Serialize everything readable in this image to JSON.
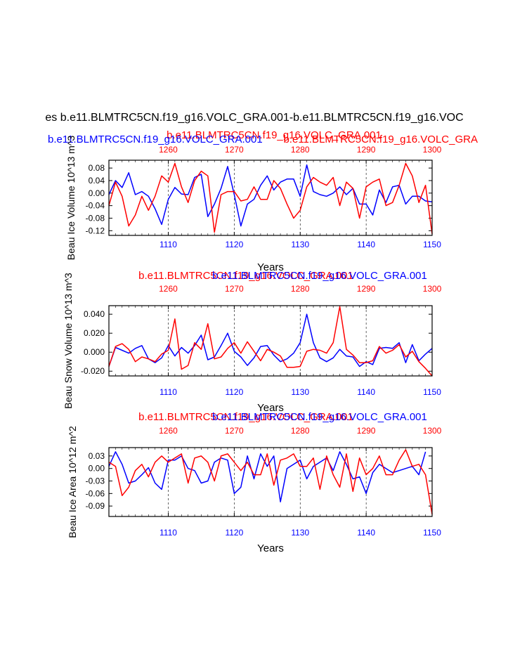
{
  "page_title": "es b.e11.BLMTRC5CN.f19_g16.VOLC_GRA.001-b.e11.BLMTRC5CN.f19_g16.VOC",
  "colors": {
    "case_a": "#0000ff",
    "case_b": "#ff0000",
    "axis": "#000000"
  },
  "chart_data": [
    {
      "type": "line",
      "header_left": "b.e11.BLMTRC5CN.f19_g16.VOLC_GRA.001",
      "header_right": "b.e11.BLMTRC5CN.f19_g16.VOLC_GRA",
      "header_red": "b.e11.BLMTRC5CN.f19_g16.VOLC_GRA.001",
      "header_blue": "b.e11.BLMTRC5CN.f19_g16.VOLC_GRA.001",
      "ylabel": "Beau Ice Volume 10^13 m^3",
      "xlabel": "Years",
      "xlim": [
        1101,
        1150
      ],
      "ylim": [
        -0.135,
        0.105
      ],
      "y_ticks": [
        0.08,
        0.04,
        0.0,
        -0.04,
        -0.08,
        -0.12
      ],
      "y_tick_labels": [
        "0.08",
        "0.04",
        "0.00",
        "-0.04",
        "-0.08",
        "-0.12"
      ],
      "x_ticks_bottom": [
        "1110",
        "1120",
        "1130",
        "1140",
        "1150"
      ],
      "x_ticks_top": [
        "1260",
        "1270",
        "1280",
        "1290",
        "1300"
      ],
      "series": [
        {
          "name": "b.e11.BLMTRC5CN.f19_g16.VOLC_GRA.001",
          "color": "blue",
          "values": [
            -0.005,
            0.04,
            0.018,
            0.065,
            -0.005,
            0.005,
            -0.01,
            -0.05,
            -0.1,
            -0.02,
            0.018,
            -0.003,
            -0.005,
            0.05,
            0.06,
            -0.075,
            -0.035,
            0.015,
            0.085,
            -0.005,
            -0.105,
            -0.035,
            -0.02,
            0.025,
            0.055,
            0.01,
            0.035,
            0.045,
            0.045,
            -0.01,
            0.09,
            0.005,
            -0.005,
            -0.01,
            0.0,
            0.02,
            -0.005,
            0.015,
            -0.035,
            -0.035,
            -0.07,
            0.01,
            -0.03,
            0.02,
            0.025,
            -0.035,
            -0.01,
            -0.01,
            -0.025,
            -0.028
          ]
        },
        {
          "name": "b.e11.BLMTRC5CN.f19_g16.VOLC_GRA.001",
          "color": "red",
          "values": [
            -0.04,
            0.035,
            -0.01,
            -0.105,
            -0.07,
            -0.01,
            -0.055,
            -0.01,
            0.055,
            0.035,
            0.095,
            0.02,
            -0.03,
            0.04,
            0.07,
            0.055,
            -0.125,
            -0.005,
            0.005,
            0.005,
            -0.025,
            -0.02,
            0.02,
            -0.02,
            -0.02,
            0.04,
            0.015,
            -0.035,
            -0.08,
            -0.055,
            0.02,
            0.05,
            0.035,
            0.025,
            0.05,
            -0.04,
            0.035,
            0.015,
            -0.08,
            0.02,
            0.035,
            0.045,
            -0.04,
            -0.03,
            0.025,
            0.095,
            0.055,
            -0.03,
            0.025,
            -0.13
          ]
        }
      ]
    },
    {
      "type": "line",
      "header_red": "b.e11.BLMTRC5CN.f19_g16.VOLC_GRA.001",
      "header_blue": "b.e11.BLMTRC5CN.f19_g16.VOLC_GRA.001",
      "ylabel": "Beau Snow Volume 10^13 m^3",
      "xlabel": "Years",
      "xlim": [
        1101,
        1150
      ],
      "ylim": [
        -0.025,
        0.049
      ],
      "y_ticks": [
        0.04,
        0.02,
        0.0,
        -0.02
      ],
      "y_tick_labels": [
        "0.040",
        "0.020",
        "0.000",
        "-0.020"
      ],
      "x_ticks_bottom": [
        "1110",
        "1120",
        "1130",
        "1140",
        "1150"
      ],
      "x_ticks_top": [
        "1260",
        "1270",
        "1280",
        "1290",
        "1300"
      ],
      "series": [
        {
          "name": "b.e11.BLMTRC5CN.f19_g16.VOLC_GRA.001",
          "color": "blue",
          "values": [
            -0.015,
            0.005,
            0.002,
            -0.001,
            0.004,
            0.007,
            -0.007,
            -0.011,
            -0.006,
            0.007,
            -0.004,
            0.005,
            -0.001,
            0.007,
            0.018,
            -0.008,
            -0.005,
            0.007,
            0.02,
            0.001,
            -0.005,
            -0.014,
            -0.006,
            0.006,
            0.007,
            -0.003,
            -0.01,
            -0.007,
            -0.001,
            0.01,
            0.04,
            0.01,
            -0.006,
            -0.01,
            -0.006,
            0.003,
            -0.004,
            -0.005,
            -0.015,
            -0.01,
            -0.013,
            0.004,
            0.005,
            0.004,
            0.01,
            -0.011,
            0.008,
            -0.009,
            -0.002,
            0.004
          ]
        },
        {
          "name": "b.e11.BLMTRC5CN.f19_g16.VOLC_GRA.001",
          "color": "red",
          "values": [
            -0.015,
            0.006,
            0.009,
            0.003,
            -0.01,
            -0.005,
            -0.007,
            -0.01,
            -0.002,
            0.002,
            0.035,
            -0.018,
            -0.014,
            0.01,
            0.003,
            0.03,
            -0.007,
            -0.005,
            0.004,
            0.01,
            -0.001,
            0.011,
            0.001,
            -0.009,
            0.003,
            0.0,
            -0.004,
            -0.016,
            -0.016,
            -0.015,
            0.001,
            0.003,
            0.002,
            -0.001,
            0.01,
            0.048,
            0.003,
            -0.003,
            -0.011,
            -0.011,
            -0.009,
            0.006,
            -0.001,
            0.002,
            0.008,
            -0.005,
            0.001,
            -0.01,
            -0.017,
            -0.025
          ]
        }
      ]
    },
    {
      "type": "line",
      "header_red": "b.e11.BLMTRC5CN.f19_g16.VOLC_GRA.001",
      "header_blue": "b.e11.BLMTRC5CN.f19_g16.VOLC_GRA.001",
      "ylabel": "Beau Ice Area 10^12 m^2",
      "xlabel": "Years",
      "xlim": [
        1101,
        1150
      ],
      "ylim": [
        -0.115,
        0.05
      ],
      "y_ticks": [
        0.03,
        0.0,
        -0.03,
        -0.06,
        -0.09
      ],
      "y_tick_labels": [
        "0.03",
        "0.00",
        "-0.03",
        "-0.06",
        "-0.09"
      ],
      "x_ticks_bottom": [
        "1110",
        "1120",
        "1130",
        "1140",
        "1150"
      ],
      "x_ticks_top": [
        "1260",
        "1270",
        "1280",
        "1290",
        "1300"
      ],
      "series": [
        {
          "name": "b.e11.BLMTRC5CN.f19_g16.VOLC_GRA.001",
          "color": "blue",
          "values": [
            0.005,
            0.04,
            0.01,
            -0.035,
            -0.03,
            -0.015,
            0.002,
            -0.035,
            -0.05,
            0.02,
            0.02,
            0.03,
            0.0,
            -0.005,
            -0.035,
            -0.03,
            0.015,
            0.025,
            0.02,
            -0.06,
            -0.045,
            0.03,
            -0.025,
            0.035,
            0.005,
            0.03,
            -0.08,
            0.0,
            0.01,
            0.02,
            -0.025,
            0.005,
            0.015,
            0.025,
            -0.005,
            0.04,
            0.01,
            -0.025,
            -0.02,
            -0.06,
            -0.01,
            0.01,
            0.0,
            -0.01,
            -0.005,
            0.0,
            0.005,
            -0.015,
            0.04,
            null
          ]
        },
        {
          "name": "b.e11.BLMTRC5CN.f19_g16.VOLC_GRA.001",
          "color": "red",
          "values": [
            0.015,
            0.005,
            -0.065,
            -0.045,
            -0.005,
            0.01,
            -0.02,
            0.015,
            0.03,
            0.015,
            0.025,
            0.035,
            -0.035,
            0.025,
            0.03,
            0.015,
            -0.03,
            0.03,
            0.035,
            0.015,
            -0.005,
            0.015,
            -0.015,
            -0.015,
            0.035,
            -0.04,
            0.02,
            0.025,
            0.035,
            0.005,
            0.005,
            0.025,
            -0.05,
            0.03,
            -0.015,
            -0.045,
            0.035,
            -0.055,
            0.025,
            -0.015,
            0.0,
            0.03,
            -0.015,
            -0.015,
            0.02,
            0.045,
            0.005,
            0.01,
            -0.015,
            -0.11
          ]
        }
      ]
    }
  ]
}
